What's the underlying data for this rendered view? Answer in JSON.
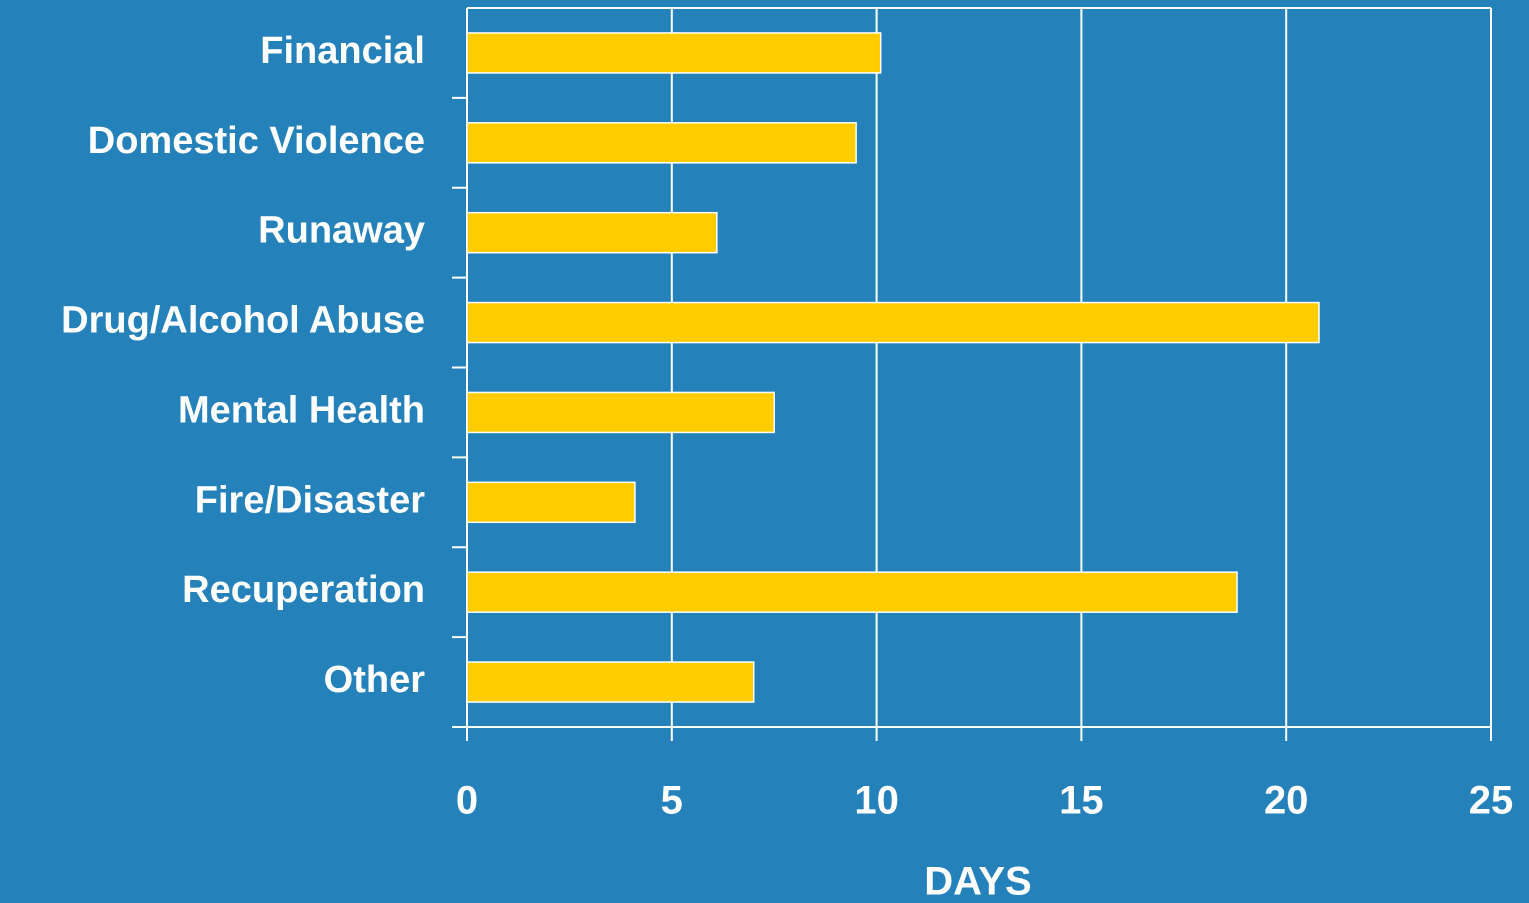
{
  "chart_data": {
    "type": "barh",
    "categories": [
      "Financial",
      "Domestic Violence",
      "Runaway",
      "Drug/Alcohol Abuse",
      "Mental Health",
      "Fire/Disaster",
      "Recuperation",
      "Other"
    ],
    "values": [
      10.1,
      9.5,
      6.1,
      20.8,
      7.5,
      4.1,
      18.8,
      7.0
    ],
    "color": "#ffcc00",
    "x_label": "DAYS",
    "xlim": [
      0,
      25
    ],
    "xticks": [
      0,
      5,
      10,
      15,
      20,
      25
    ],
    "grid": true
  }
}
